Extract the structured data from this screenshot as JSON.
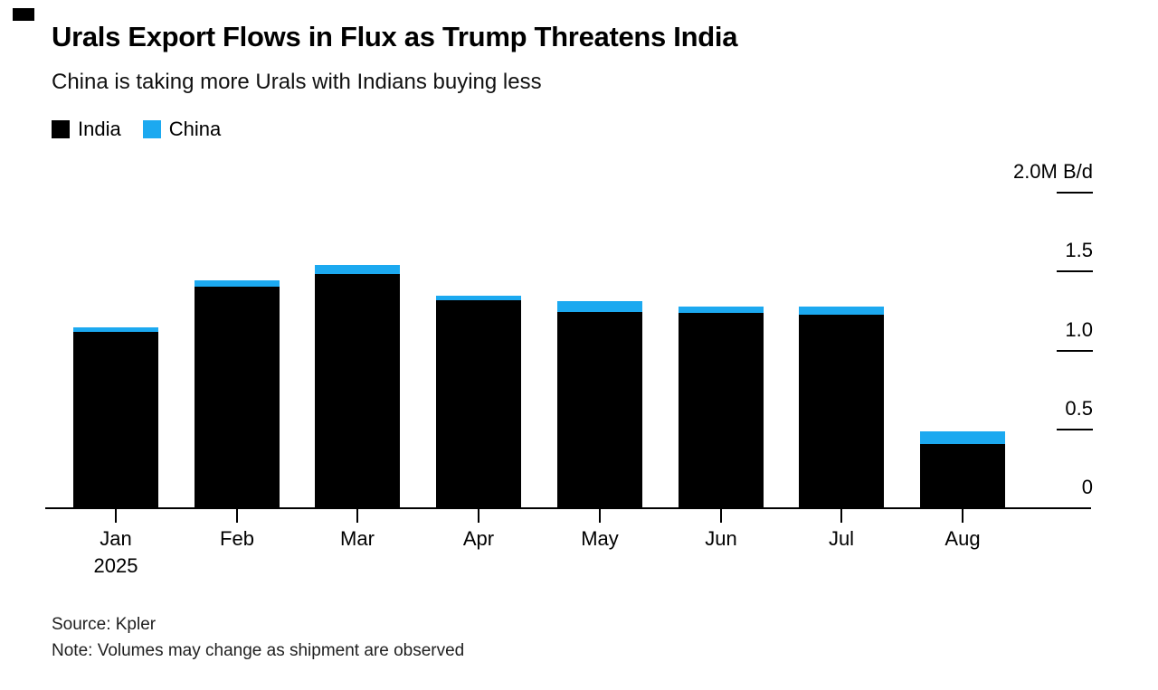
{
  "header": {
    "title": "Urals Export Flows in Flux as Trump Threatens India",
    "subtitle": "China is taking more Urals with Indians buying less"
  },
  "chart_data": {
    "type": "bar",
    "stacked": true,
    "title": "Urals Export Flows in Flux as Trump Threatens India",
    "subtitle": "China is taking more Urals with Indians buying less",
    "unit": "M B/d",
    "categories": [
      "Jan",
      "Feb",
      "Mar",
      "Apr",
      "May",
      "Jun",
      "Jul",
      "Aug"
    ],
    "x_sublabel": {
      "index": 0,
      "text": "2025"
    },
    "series": [
      {
        "name": "India",
        "color": "#000000",
        "values": [
          1.11,
          1.4,
          1.48,
          1.31,
          1.24,
          1.23,
          1.22,
          0.4
        ]
      },
      {
        "name": "China",
        "color": "#1CA9F0",
        "values": [
          0.03,
          0.04,
          0.06,
          0.03,
          0.07,
          0.04,
          0.05,
          0.08
        ]
      }
    ],
    "y_ticks": [
      {
        "value": 0,
        "label": "0"
      },
      {
        "value": 0.5,
        "label": "0.5"
      },
      {
        "value": 1.0,
        "label": "1.0"
      },
      {
        "value": 1.5,
        "label": "1.5"
      },
      {
        "value": 2.0,
        "label": "2.0M B/d"
      }
    ],
    "ylim": [
      0,
      2.0
    ],
    "y_axis_side": "right",
    "grid": false,
    "legend_position": "top-left"
  },
  "footer": {
    "source": "Source: Kpler",
    "note": "Note: Volumes may change as shipment are observed"
  }
}
